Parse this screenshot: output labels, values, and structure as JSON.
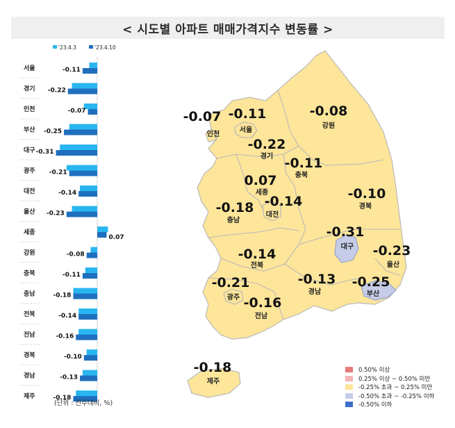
{
  "title": "< 시도별 아파트 매매가격지수 변동률 >",
  "unit_note": "(단위 : 전주대비, %)",
  "colors": {
    "series_prev": "#29b6f0",
    "series_curr": "#1f6fbf",
    "map_fill": "#fde59a",
    "map_border": "#b9b9b9",
    "map_fill_low": "#c6cce8"
  },
  "chart_data": [
    {
      "type": "bar",
      "orientation": "horizontal",
      "categories": [
        "서울",
        "경기",
        "인천",
        "부산",
        "대구",
        "광주",
        "대전",
        "울산",
        "세종",
        "강원",
        "충북",
        "충남",
        "전북",
        "전남",
        "경북",
        "경남",
        "제주"
      ],
      "series": [
        {
          "name": "'23.4.3",
          "values": [
            -0.06,
            -0.19,
            -0.1,
            -0.21,
            -0.28,
            -0.23,
            -0.13,
            -0.19,
            0.08,
            -0.05,
            -0.09,
            -0.18,
            -0.14,
            -0.14,
            -0.08,
            -0.11,
            -0.16
          ]
        },
        {
          "name": "'23.4.10",
          "values": [
            -0.11,
            -0.22,
            -0.07,
            -0.25,
            -0.31,
            -0.21,
            -0.14,
            -0.23,
            0.07,
            -0.08,
            -0.11,
            -0.18,
            -0.14,
            -0.16,
            -0.1,
            -0.13,
            -0.18
          ]
        }
      ],
      "data_labels": [
        "-0.11",
        "-0.22",
        "-0.07",
        "-0.25",
        "-0.31",
        "-0.21",
        "-0.14",
        "-0.23",
        "0.07",
        "-0.08",
        "-0.11",
        "-0.18",
        "-0.14",
        "-0.16",
        "-0.10",
        "-0.13",
        "-0.18"
      ],
      "xlim": [
        -0.35,
        0.1
      ],
      "legend": "top"
    },
    {
      "type": "map",
      "regions": [
        {
          "name": "인천",
          "value": "-0.07",
          "level": "-0.25% 초과 ~ 0.25% 미만"
        },
        {
          "name": "서울",
          "value": "-0.11",
          "level": "-0.25% 초과 ~ 0.25% 미만"
        },
        {
          "name": "강원",
          "value": "-0.08",
          "level": "-0.25% 초과 ~ 0.25% 미만"
        },
        {
          "name": "경기",
          "value": "-0.22",
          "level": "-0.25% 초과 ~ 0.25% 미만"
        },
        {
          "name": "충북",
          "value": "-0.11",
          "level": "-0.25% 초과 ~ 0.25% 미만"
        },
        {
          "name": "세종",
          "value": "0.07",
          "level": "-0.25% 초과 ~ 0.25% 미만"
        },
        {
          "name": "충남",
          "value": "-0.18",
          "level": "-0.25% 초과 ~ 0.25% 미만"
        },
        {
          "name": "대전",
          "value": "-0.14",
          "level": "-0.25% 초과 ~ 0.25% 미만"
        },
        {
          "name": "경북",
          "value": "-0.10",
          "level": "-0.25% 초과 ~ 0.25% 미만"
        },
        {
          "name": "대구",
          "value": "-0.31",
          "level": "-0.50% 초과 ~ -0.25% 이하"
        },
        {
          "name": "울산",
          "value": "-0.23",
          "level": "-0.25% 초과 ~ 0.25% 미만"
        },
        {
          "name": "전북",
          "value": "-0.14",
          "level": "-0.25% 초과 ~ 0.25% 미만"
        },
        {
          "name": "광주",
          "value": "-0.21",
          "level": "-0.25% 초과 ~ 0.25% 미만"
        },
        {
          "name": "경남",
          "value": "-0.13",
          "level": "-0.25% 초과 ~ 0.25% 미만"
        },
        {
          "name": "부산",
          "value": "-0.25",
          "level": "-0.50% 초과 ~ -0.25% 이하"
        },
        {
          "name": "전남",
          "value": "-0.16",
          "level": "-0.25% 초과 ~ 0.25% 미만"
        },
        {
          "name": "제주",
          "value": "-0.18",
          "level": "-0.25% 초과 ~ 0.25% 미만"
        }
      ],
      "legend": [
        {
          "label": "0.50% 이상",
          "color": "#e87a7a"
        },
        {
          "label": "0.25% 이상 ~ 0.50% 미만",
          "color": "#f4b6b6"
        },
        {
          "label": "-0.25% 초과 ~ 0.25% 미만",
          "color": "#fde59a"
        },
        {
          "label": "-0.50% 초과 ~ -0.25% 이하",
          "color": "#c6cce8"
        },
        {
          "label": "-0.50% 이하",
          "color": "#3e6fc7"
        }
      ]
    }
  ]
}
